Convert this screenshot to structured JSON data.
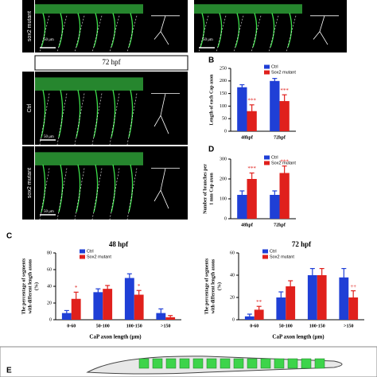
{
  "figure": {
    "top_label": "sox2 mutant",
    "header": "72 hpf",
    "row_labels": [
      "Ctrl",
      "sox2 mutant"
    ],
    "scale_bars": [
      "50 μm",
      "50 μm",
      "50 μm",
      "50 μm"
    ],
    "panel_letters": [
      "B",
      "C",
      "D",
      "E"
    ],
    "x_axis_label": "CaP axon length (μm)"
  },
  "chart_data": [
    {
      "type": "bar",
      "ylabel": [
        "Length of each Cap axon"
      ],
      "categories": [
        "48hpf",
        "72hpf"
      ],
      "ylim": [
        0,
        250
      ],
      "yticks": [
        0,
        50,
        100,
        150,
        200,
        250
      ],
      "series": [
        {
          "name": "Ctrl",
          "color": "#1f3fd6",
          "values": [
            175,
            200
          ],
          "errors": [
            10,
            10
          ],
          "marks": [
            null,
            null
          ]
        },
        {
          "name": "Sox2 mutant",
          "color": "#e0201c",
          "values": [
            80,
            120
          ],
          "errors": [
            25,
            25
          ],
          "marks": [
            "***",
            "***"
          ]
        }
      ]
    },
    {
      "type": "bar",
      "ylabel": [
        "Number of branches per",
        "1 mm Cap axon"
      ],
      "categories": [
        "48hpf",
        "72hpf"
      ],
      "ylim": [
        0,
        300
      ],
      "yticks": [
        0,
        100,
        200,
        300
      ],
      "series": [
        {
          "name": "Ctrl",
          "color": "#1f3fd6",
          "values": [
            120,
            120
          ],
          "errors": [
            20,
            20
          ],
          "marks": [
            null,
            null
          ]
        },
        {
          "name": "Sox2 mutant",
          "color": "#e0201c",
          "values": [
            200,
            230
          ],
          "errors": [
            30,
            35
          ],
          "marks": [
            "***",
            "***"
          ]
        }
      ]
    },
    {
      "type": "bar",
      "title": "48 hpf",
      "ylabel": [
        "The percentage of segments",
        "with different length axons",
        "(%)"
      ],
      "categories": [
        "0-60",
        "50-100",
        "100-150",
        ">150"
      ],
      "ylim": [
        0,
        80
      ],
      "yticks": [
        0,
        20,
        40,
        60,
        80
      ],
      "series": [
        {
          "name": "Ctrl",
          "color": "#1f3fd6",
          "values": [
            8,
            33,
            50,
            8
          ],
          "errors": [
            3,
            4,
            5,
            5
          ],
          "marks": [
            null,
            null,
            null,
            null
          ]
        },
        {
          "name": "Sox2 mutant",
          "color": "#e0201c",
          "values": [
            25,
            37,
            30,
            3
          ],
          "errors": [
            8,
            4,
            5,
            2
          ],
          "marks": [
            "*",
            null,
            "*",
            null
          ]
        }
      ]
    },
    {
      "type": "bar",
      "title": "72 hpf",
      "ylabel": [
        "The percentage of segments",
        "with different length axons",
        "(%)"
      ],
      "categories": [
        "0-60",
        "50-100",
        "100-150",
        ">150"
      ],
      "ylim": [
        0,
        60
      ],
      "yticks": [
        0,
        20,
        40,
        60
      ],
      "series": [
        {
          "name": "Ctrl",
          "color": "#1f3fd6",
          "values": [
            3,
            20,
            40,
            38
          ],
          "errors": [
            2,
            5,
            6,
            8
          ],
          "marks": [
            null,
            null,
            null,
            null
          ]
        },
        {
          "name": "Sox2 mutant",
          "color": "#e0201c",
          "values": [
            9,
            30,
            40,
            20
          ],
          "errors": [
            3,
            5,
            6,
            6
          ],
          "marks": [
            "**",
            null,
            null,
            "++"
          ]
        }
      ]
    }
  ]
}
